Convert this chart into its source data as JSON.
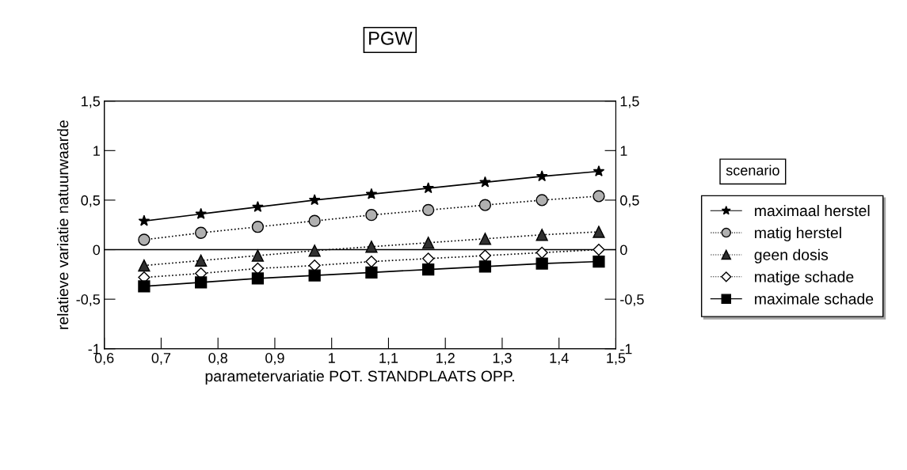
{
  "chart_data": {
    "type": "line",
    "title": "PGW",
    "xlabel": "parametervariatie POT. STANDPLAATS OPP.",
    "ylabel": "relatieve variatie natuurwaarde",
    "legend_title": "scenario",
    "legend": "right",
    "x": [
      0.67,
      0.77,
      0.87,
      0.97,
      1.07,
      1.17,
      1.27,
      1.37,
      1.47
    ],
    "series": [
      {
        "name": "maximaal herstel",
        "color": "#000000",
        "marker": "star",
        "line_style": "solid",
        "values": [
          0.29,
          0.36,
          0.43,
          0.5,
          0.56,
          0.62,
          0.68,
          0.74,
          0.79
        ]
      },
      {
        "name": "matig herstel",
        "color": "#b0b0b0",
        "marker": "circle",
        "line_style": "dotted",
        "values": [
          0.1,
          0.17,
          0.23,
          0.29,
          0.35,
          0.4,
          0.45,
          0.5,
          0.54
        ]
      },
      {
        "name": "geen dosis",
        "color": "#303030",
        "marker": "triangle",
        "line_style": "dotted",
        "values": [
          -0.16,
          -0.11,
          -0.06,
          -0.01,
          0.03,
          0.07,
          0.11,
          0.15,
          0.18
        ]
      },
      {
        "name": "matige schade",
        "color": "#ffffff",
        "marker": "diamond",
        "line_style": "dotted",
        "values": [
          -0.28,
          -0.24,
          -0.19,
          -0.16,
          -0.12,
          -0.09,
          -0.06,
          -0.03,
          0.0
        ]
      },
      {
        "name": "maximale schade",
        "color": "#000000",
        "marker": "square",
        "line_style": "solid",
        "values": [
          -0.37,
          -0.33,
          -0.29,
          -0.26,
          -0.23,
          -0.2,
          -0.17,
          -0.14,
          -0.12
        ]
      }
    ],
    "xlim": [
      0.6,
      1.5
    ],
    "xticks": [
      {
        "value": 0.6,
        "label": "0,6"
      },
      {
        "value": 0.7,
        "label": "0,7"
      },
      {
        "value": 0.8,
        "label": "0,8"
      },
      {
        "value": 0.9,
        "label": "0,9"
      },
      1,
      {
        "value": 1.1,
        "label": "1,1"
      },
      {
        "value": 1.2,
        "label": "1,2"
      },
      {
        "value": 1.3,
        "label": "1,3"
      },
      {
        "value": 1.4,
        "label": "1,4"
      },
      {
        "value": 1.5,
        "label": "1,5"
      }
    ],
    "ylim": [
      -1,
      1.5
    ],
    "yticks": [
      -1,
      {
        "value": -0.5,
        "label": "-0,5"
      },
      0,
      {
        "value": 0.5,
        "label": "0,5"
      },
      1,
      {
        "value": 1.5,
        "label": "1,5"
      }
    ],
    "y2lim": [
      -1,
      1.5
    ],
    "y2ticks": [
      -1,
      {
        "value": -0.5,
        "label": "-0,5"
      },
      0,
      {
        "value": 0.5,
        "label": "0,5"
      },
      1,
      {
        "value": 1.5,
        "label": "1,5"
      }
    ],
    "ref_lines": [
      {
        "axis": "y",
        "value": 0,
        "color": "#000000",
        "line_style": "solid"
      }
    ],
    "grid": false
  }
}
